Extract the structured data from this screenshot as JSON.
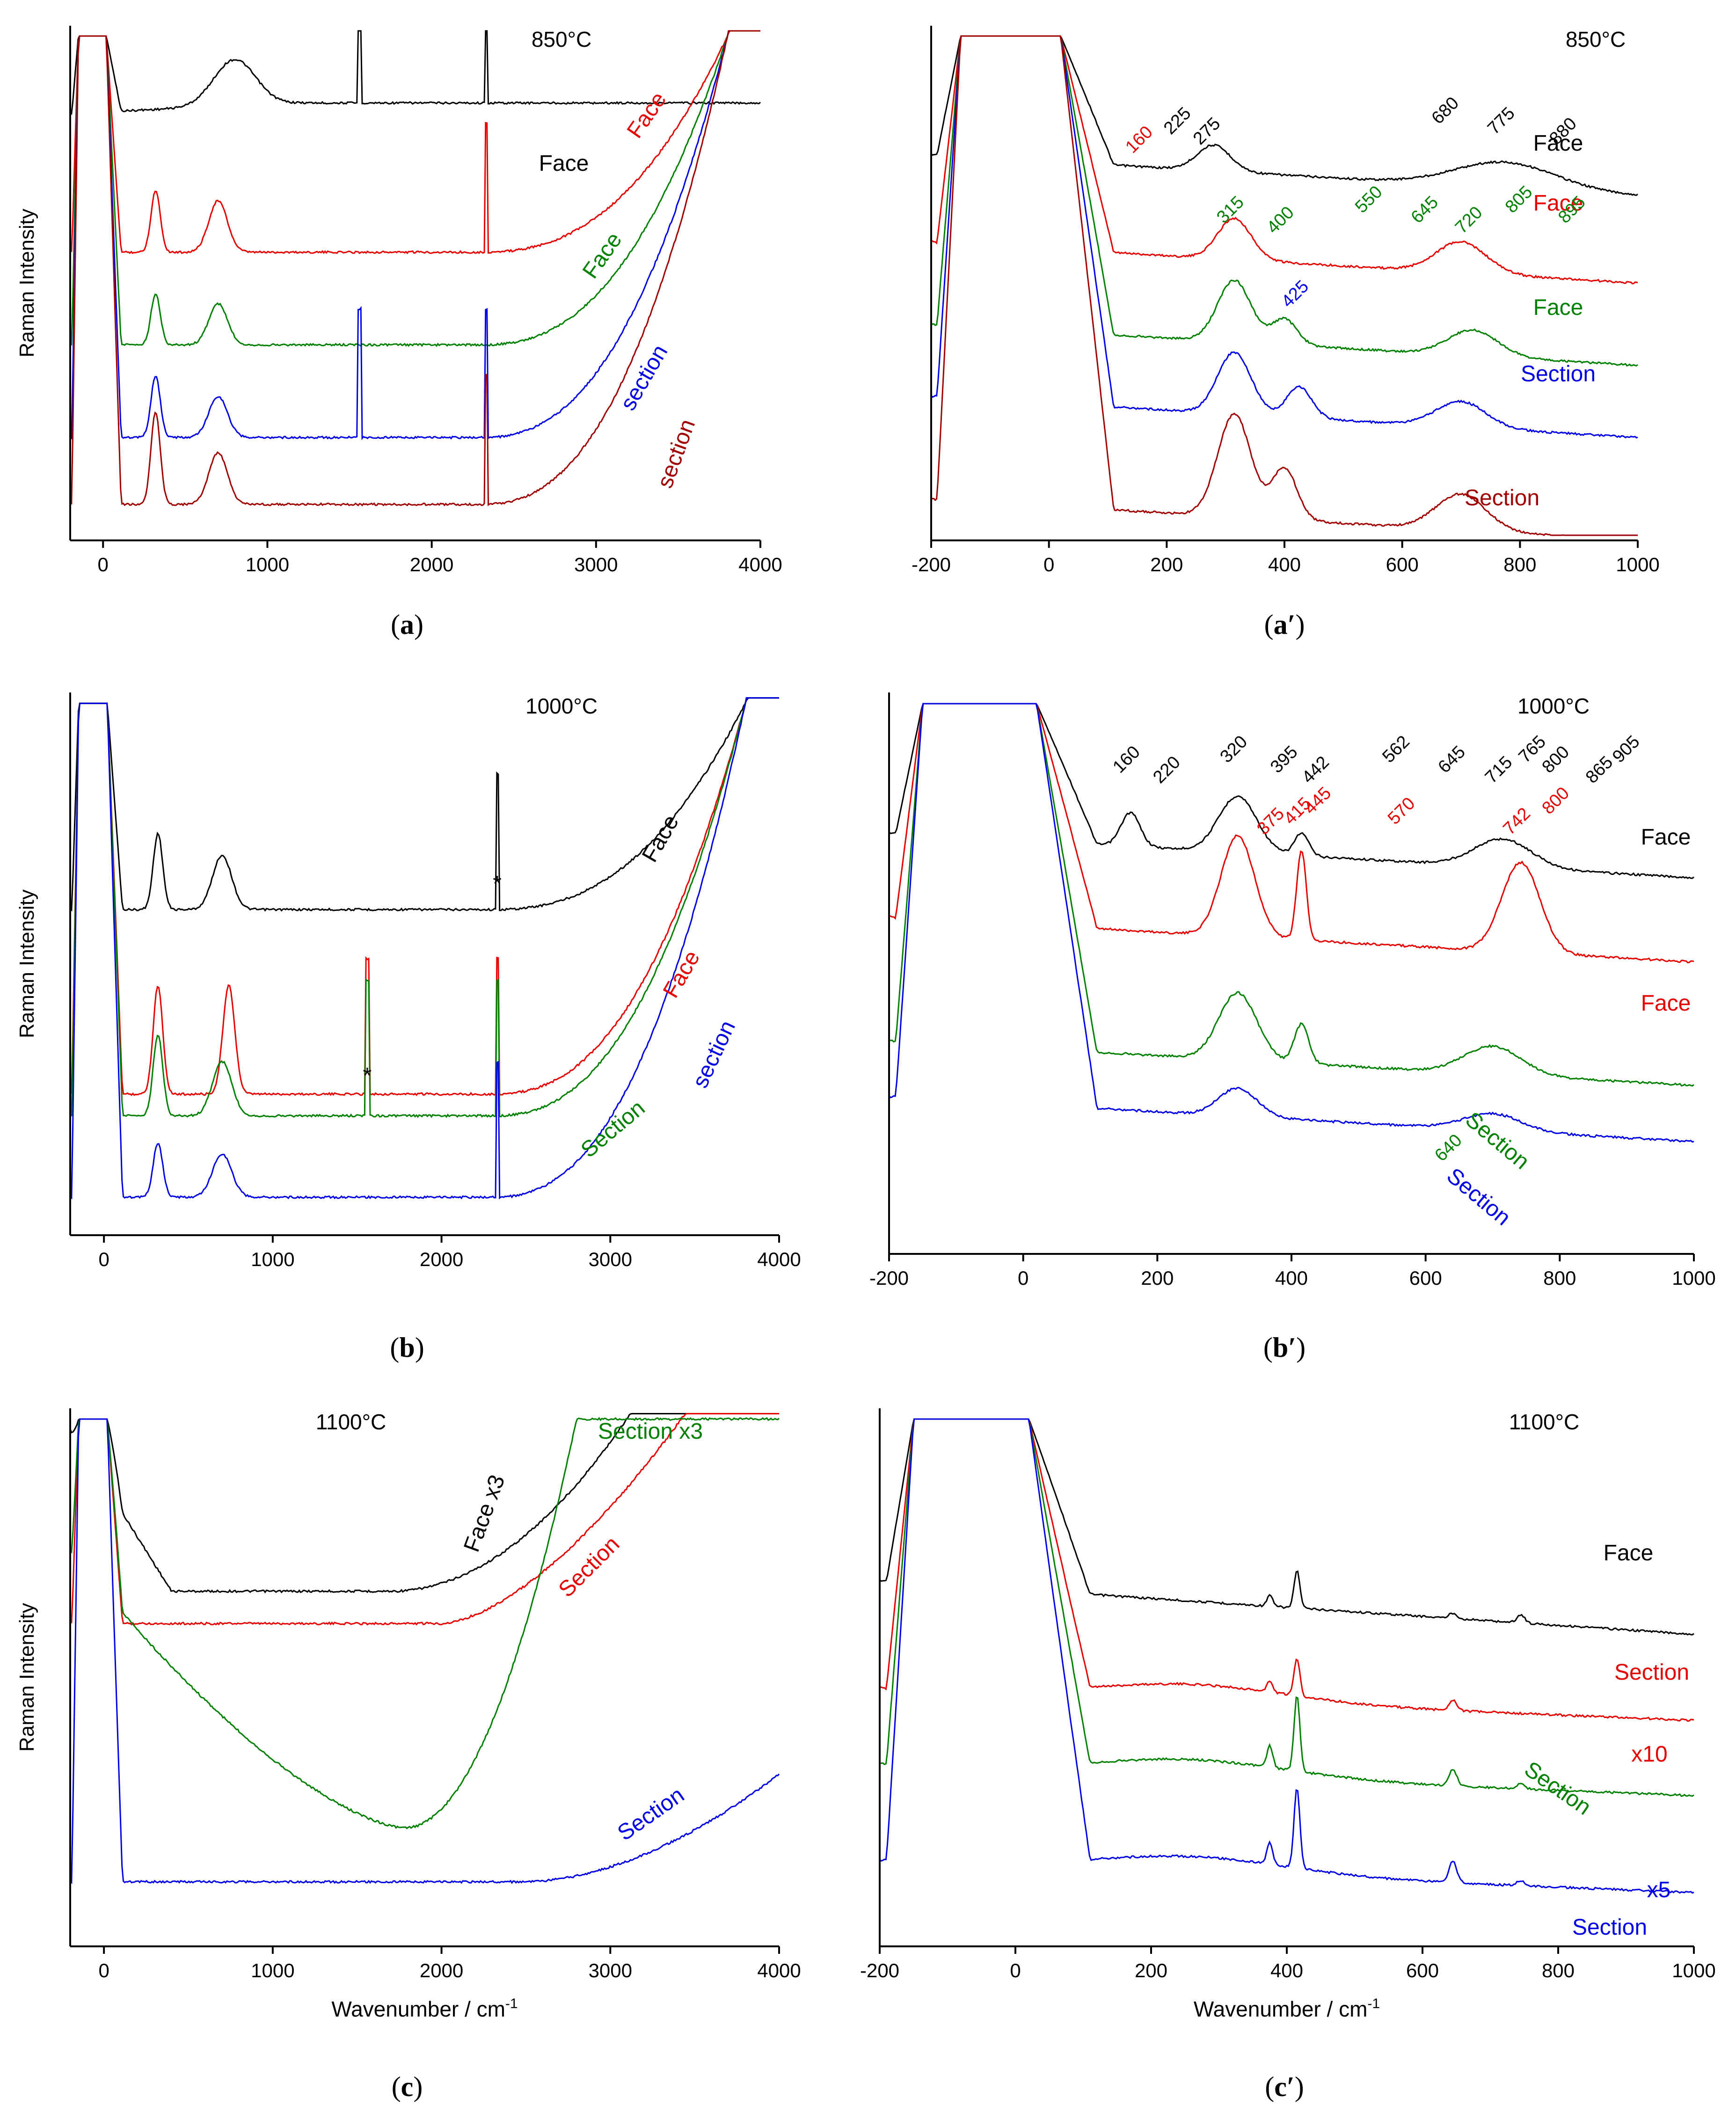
{
  "figure": {
    "colors": {
      "black": "#000000",
      "red": "#e60000",
      "green": "#008000",
      "blue": "#0000e6",
      "darkred": "#a00000",
      "axis": "#000000"
    },
    "ylabel": "Raman Intensity",
    "xlabel": "Wavenumber / cm-1",
    "xlabel_parts": {
      "main": "Wavenumber / cm",
      "sup": "-1"
    }
  },
  "chart_data": [
    {
      "id": "a",
      "type": "line",
      "caption": "a",
      "title": "850°C",
      "ylabel": "Raman Intensity",
      "xlabel": "",
      "xlim": [
        -200,
        4000
      ],
      "xticks": [
        "0",
        "1000",
        "2000",
        "3000",
        "4000"
      ],
      "series": [
        {
          "name": "Face",
          "color": "#000000",
          "label": "Face",
          "shape": "fluor_flat",
          "level": 0.15,
          "spikes": [
            1560,
            2330
          ],
          "peaks": [
            {
              "x": 800,
              "h": 0.09,
              "w": 180
            }
          ]
        },
        {
          "name": "Face",
          "color": "#e60000",
          "label": "Face",
          "shape": "u_rise",
          "level": 0.44,
          "spikes": [
            2330
          ],
          "peaks": [
            {
              "x": 320,
              "h": 0.12,
              "w": 40
            },
            {
              "x": 700,
              "h": 0.1,
              "w": 80
            }
          ]
        },
        {
          "name": "Face",
          "color": "#008000",
          "label": "Face",
          "shape": "u_rise",
          "level": 0.62,
          "spikes": [],
          "peaks": [
            {
              "x": 320,
              "h": 0.1,
              "w": 40
            },
            {
              "x": 700,
              "h": 0.08,
              "w": 80
            }
          ]
        },
        {
          "name": "section",
          "color": "#0000e6",
          "label": "section",
          "shape": "u_rise",
          "level": 0.8,
          "spikes": [
            1560,
            2330
          ],
          "peaks": [
            {
              "x": 320,
              "h": 0.12,
              "w": 40
            },
            {
              "x": 700,
              "h": 0.08,
              "w": 80
            }
          ]
        },
        {
          "name": "section",
          "color": "#a00000",
          "label": "section",
          "shape": "u_rise",
          "level": 0.93,
          "spikes": [
            2330
          ],
          "peaks": [
            {
              "x": 320,
              "h": 0.18,
              "w": 40
            },
            {
              "x": 700,
              "h": 0.1,
              "w": 80
            }
          ]
        }
      ]
    },
    {
      "id": "a2",
      "type": "line",
      "caption": "a′",
      "title": "850°C",
      "xlim": [
        -200,
        1000
      ],
      "xticks": [
        "-200",
        "0",
        "200",
        "400",
        "600",
        "800",
        "1000"
      ],
      "series": [
        {
          "name": "Face",
          "color": "#000000",
          "label": "Face",
          "shape": "decay",
          "level": 0.25,
          "peaks": [
            {
              "x": 280,
              "h": 0.05,
              "w": 40
            },
            {
              "x": 775,
              "h": 0.05,
              "w": 120
            }
          ]
        },
        {
          "name": "Face",
          "color": "#e60000",
          "label": "Face",
          "shape": "decay",
          "level": 0.42,
          "peaks": [
            {
              "x": 315,
              "h": 0.08,
              "w": 40
            },
            {
              "x": 700,
              "h": 0.06,
              "w": 60
            }
          ]
        },
        {
          "name": "Face",
          "color": "#008000",
          "label": "Face",
          "shape": "decay",
          "level": 0.58,
          "peaks": [
            {
              "x": 315,
              "h": 0.12,
              "w": 40
            },
            {
              "x": 400,
              "h": 0.05,
              "w": 30
            },
            {
              "x": 720,
              "h": 0.05,
              "w": 60
            }
          ]
        },
        {
          "name": "Section",
          "color": "#0000e6",
          "label": "Section",
          "shape": "decay",
          "level": 0.72,
          "peaks": [
            {
              "x": 315,
              "h": 0.12,
              "w": 40
            },
            {
              "x": 425,
              "h": 0.06,
              "w": 30
            },
            {
              "x": 700,
              "h": 0.05,
              "w": 60
            }
          ]
        },
        {
          "name": "Section",
          "color": "#a00000",
          "label": "Section",
          "shape": "decay",
          "level": 0.92,
          "peaks": [
            {
              "x": 315,
              "h": 0.2,
              "w": 40
            },
            {
              "x": 400,
              "h": 0.1,
              "w": 30
            },
            {
              "x": 700,
              "h": 0.07,
              "w": 60
            }
          ]
        }
      ],
      "peak_labels": [
        {
          "text": "225",
          "x": 225,
          "color": "#000000"
        },
        {
          "text": "275",
          "x": 275,
          "color": "#000000"
        },
        {
          "text": "680",
          "x": 680,
          "color": "#000000"
        },
        {
          "text": "775",
          "x": 775,
          "color": "#000000"
        },
        {
          "text": "880",
          "x": 880,
          "color": "#000000"
        },
        {
          "text": "160",
          "x": 160,
          "color": "#e60000"
        },
        {
          "text": "315",
          "x": 315,
          "color": "#008000"
        },
        {
          "text": "400",
          "x": 400,
          "color": "#008000"
        },
        {
          "text": "550",
          "x": 550,
          "color": "#008000"
        },
        {
          "text": "645",
          "x": 645,
          "color": "#008000"
        },
        {
          "text": "720",
          "x": 720,
          "color": "#008000"
        },
        {
          "text": "805",
          "x": 805,
          "color": "#008000"
        },
        {
          "text": "895",
          "x": 895,
          "color": "#008000"
        },
        {
          "text": "425",
          "x": 425,
          "color": "#0000e6"
        }
      ]
    },
    {
      "id": "b",
      "type": "line",
      "caption": "b",
      "title": "1000°C",
      "ylabel": "Raman Intensity",
      "xlim": [
        -200,
        4000
      ],
      "xticks": [
        "0",
        "1000",
        "2000",
        "3000",
        "4000"
      ],
      "series": [
        {
          "name": "Face",
          "color": "#000000",
          "label": "Face",
          "shape": "u_rise",
          "level": 0.4,
          "spikes": [
            2330
          ],
          "peaks": [
            {
              "x": 320,
              "h": 0.14,
              "w": 40
            },
            {
              "x": 700,
              "h": 0.1,
              "w": 80
            }
          ]
        },
        {
          "name": "Face",
          "color": "#e60000",
          "label": "Face",
          "shape": "u_rise",
          "level": 0.74,
          "spikes": [
            1560,
            2330
          ],
          "peaks": [
            {
              "x": 320,
              "h": 0.2,
              "w": 40
            },
            {
              "x": 740,
              "h": 0.2,
              "w": 50
            }
          ]
        },
        {
          "name": "Section",
          "color": "#008000",
          "label": "Section",
          "shape": "u_rise",
          "level": 0.78,
          "spikes": [
            1560,
            2330
          ],
          "peaks": [
            {
              "x": 320,
              "h": 0.15,
              "w": 40
            },
            {
              "x": 700,
              "h": 0.1,
              "w": 80
            }
          ]
        },
        {
          "name": "section",
          "color": "#0000e6",
          "label": "section",
          "shape": "u_rise",
          "level": 0.93,
          "spikes": [
            2330
          ],
          "peaks": [
            {
              "x": 320,
              "h": 0.1,
              "w": 40
            },
            {
              "x": 700,
              "h": 0.08,
              "w": 80
            }
          ]
        }
      ],
      "stars": [
        {
          "text": "*",
          "x": 2330
        },
        {
          "text": "*",
          "x": 1560
        }
      ]
    },
    {
      "id": "b2",
      "type": "line",
      "caption": "b′",
      "title": "1000°C",
      "xlim": [
        -200,
        1000
      ],
      "xticks": [
        "-200",
        "0",
        "200",
        "400",
        "600",
        "800",
        "1000"
      ],
      "series": [
        {
          "name": "Face",
          "color": "#000000",
          "label": "Face",
          "shape": "decay",
          "level": 0.25,
          "peaks": [
            {
              "x": 160,
              "h": 0.06,
              "w": 20
            },
            {
              "x": 320,
              "h": 0.1,
              "w": 40
            },
            {
              "x": 415,
              "h": 0.04,
              "w": 15
            },
            {
              "x": 715,
              "h": 0.05,
              "w": 60
            }
          ]
        },
        {
          "name": "Face",
          "color": "#e60000",
          "label": "Face",
          "shape": "decay",
          "level": 0.4,
          "peaks": [
            {
              "x": 320,
              "h": 0.18,
              "w": 35
            },
            {
              "x": 415,
              "h": 0.16,
              "w": 10
            },
            {
              "x": 742,
              "h": 0.16,
              "w": 40
            }
          ]
        },
        {
          "name": "Section",
          "color": "#008000",
          "label": "Section",
          "shape": "decay",
          "level": 0.62,
          "peaks": [
            {
              "x": 320,
              "h": 0.12,
              "w": 40
            },
            {
              "x": 415,
              "h": 0.07,
              "w": 15
            },
            {
              "x": 700,
              "h": 0.05,
              "w": 60
            }
          ]
        },
        {
          "name": "Section",
          "color": "#0000e6",
          "label": "Section",
          "shape": "decay",
          "level": 0.72,
          "peaks": [
            {
              "x": 320,
              "h": 0.05,
              "w": 40
            },
            {
              "x": 700,
              "h": 0.03,
              "w": 60
            }
          ]
        }
      ],
      "peak_labels": [
        {
          "text": "160",
          "x": 160,
          "color": "#000000"
        },
        {
          "text": "220",
          "x": 220,
          "color": "#000000"
        },
        {
          "text": "320",
          "x": 320,
          "color": "#000000"
        },
        {
          "text": "395",
          "x": 395,
          "color": "#000000"
        },
        {
          "text": "442",
          "x": 442,
          "color": "#000000"
        },
        {
          "text": "562",
          "x": 562,
          "color": "#000000"
        },
        {
          "text": "645",
          "x": 645,
          "color": "#000000"
        },
        {
          "text": "715",
          "x": 715,
          "color": "#000000"
        },
        {
          "text": "765",
          "x": 765,
          "color": "#000000"
        },
        {
          "text": "800",
          "x": 800,
          "color": "#000000"
        },
        {
          "text": "865",
          "x": 865,
          "color": "#000000"
        },
        {
          "text": "905",
          "x": 905,
          "color": "#000000"
        },
        {
          "text": "415",
          "x": 415,
          "color": "#e60000"
        },
        {
          "text": "375",
          "x": 375,
          "color": "#e60000"
        },
        {
          "text": "445",
          "x": 445,
          "color": "#e60000"
        },
        {
          "text": "570",
          "x": 570,
          "color": "#e60000"
        },
        {
          "text": "742",
          "x": 742,
          "color": "#e60000"
        },
        {
          "text": "800",
          "x": 800,
          "color": "#e60000"
        },
        {
          "text": "640",
          "x": 640,
          "color": "#008000"
        }
      ]
    },
    {
      "id": "c",
      "type": "line",
      "caption": "c",
      "title": "1100°C",
      "ylabel": "Raman Intensity",
      "xlabel": "Wavenumber / cm-1",
      "xlim": [
        -200,
        4000
      ],
      "xticks": [
        "0",
        "1000",
        "2000",
        "3000",
        "4000"
      ],
      "series": [
        {
          "name": "Face x3",
          "color": "#000000",
          "label": "Face x3",
          "shape": "u_black",
          "level": 0.33
        },
        {
          "name": "Section",
          "color": "#e60000",
          "label": "Section",
          "shape": "u_red",
          "level": 0.5
        },
        {
          "name": "Section x3",
          "color": "#008000",
          "label": "Section  x3",
          "shape": "u_green",
          "level": 0.85
        },
        {
          "name": "Section",
          "color": "#0000e6",
          "label": "Section",
          "shape": "u_blue",
          "level": 0.97
        }
      ]
    },
    {
      "id": "c2",
      "type": "line",
      "caption": "c′",
      "title": "1100°C",
      "xlabel": "Wavenumber / cm-1",
      "xlim": [
        -200,
        1000
      ],
      "xticks": [
        "-200",
        "0",
        "200",
        "400",
        "600",
        "800",
        "1000"
      ],
      "series": [
        {
          "name": "Face",
          "color": "#000000",
          "label": "Face",
          "shape": "decay_sharp",
          "level": 0.32,
          "peaks": [
            {
              "x": 375,
              "h": 0.02,
              "w": 6
            },
            {
              "x": 415,
              "h": 0.07,
              "w": 6
            },
            {
              "x": 645,
              "h": 0.01,
              "w": 8
            },
            {
              "x": 745,
              "h": 0.015,
              "w": 8
            }
          ]
        },
        {
          "name": "Section",
          "color": "#e60000",
          "label": "Section",
          "shape": "hump",
          "level": 0.52,
          "peaks": [
            {
              "x": 375,
              "h": 0.02,
              "w": 6
            },
            {
              "x": 415,
              "h": 0.07,
              "w": 6
            },
            {
              "x": 645,
              "h": 0.02,
              "w": 8
            }
          ]
        },
        {
          "name": "Section",
          "color": "#008000",
          "label": "Section",
          "shape": "hump",
          "level": 0.66,
          "peaks": [
            {
              "x": 375,
              "h": 0.04,
              "w": 6
            },
            {
              "x": 415,
              "h": 0.14,
              "w": 6
            },
            {
              "x": 645,
              "h": 0.03,
              "w": 8
            },
            {
              "x": 745,
              "h": 0.01,
              "w": 8
            }
          ]
        },
        {
          "name": "Section",
          "color": "#0000e6",
          "label": "Section",
          "shape": "hump",
          "level": 0.84,
          "peaks": [
            {
              "x": 375,
              "h": 0.04,
              "w": 6
            },
            {
              "x": 415,
              "h": 0.15,
              "w": 6
            },
            {
              "x": 645,
              "h": 0.04,
              "w": 8
            },
            {
              "x": 745,
              "h": 0.01,
              "w": 8
            }
          ]
        }
      ],
      "extra_labels": [
        {
          "text": "x10",
          "color": "#e60000"
        },
        {
          "text": "x5",
          "color": "#0000e6"
        }
      ]
    }
  ]
}
